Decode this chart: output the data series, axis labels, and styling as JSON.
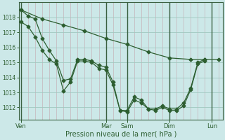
{
  "bg_color": "#cce8e8",
  "grid_minor_color": "#b8d8d4",
  "grid_major_color": "#a0c8c0",
  "vline_day_color": "#3a6040",
  "line_color": "#2d5e30",
  "xlabel": "Pression niveau de la mer( hPa )",
  "tick_color": "#2d5e30",
  "ylim": [
    1011.2,
    1019.0
  ],
  "yticks": [
    1012,
    1013,
    1014,
    1015,
    1016,
    1017,
    1018
  ],
  "xtick_labels": [
    "Ven",
    "Mar",
    "Sam",
    "Dim",
    "Lun"
  ],
  "xtick_positions": [
    0,
    12,
    15,
    21,
    27
  ],
  "xlim_min": -0.3,
  "xlim_max": 28.5,
  "num_minor_vlines": 29,
  "vline_day_positions": [
    0,
    12,
    15,
    21,
    27
  ],
  "line1_x": [
    0,
    1,
    2,
    3,
    4,
    5,
    6,
    7,
    8,
    9,
    10,
    11,
    12,
    13,
    14,
    15,
    16,
    17,
    18,
    19,
    20,
    21,
    22,
    23,
    24,
    25,
    26
  ],
  "line1_y": [
    1018.5,
    1018.1,
    1017.9,
    1016.6,
    1015.8,
    1015.1,
    1013.8,
    1013.9,
    1015.2,
    1015.2,
    1015.1,
    1014.8,
    1014.7,
    1013.7,
    1011.8,
    1011.8,
    1012.7,
    1012.5,
    1011.9,
    1011.9,
    1012.1,
    1011.9,
    1011.9,
    1012.3,
    1013.3,
    1015.0,
    1015.2
  ],
  "line2_x": [
    0,
    1,
    2,
    3,
    4,
    5,
    6,
    7,
    8,
    9,
    10,
    11,
    12,
    13,
    14,
    15,
    16,
    17,
    18,
    19,
    20,
    21,
    22,
    23,
    24,
    25,
    26
  ],
  "line2_y": [
    1017.7,
    1017.4,
    1016.7,
    1015.8,
    1015.2,
    1014.9,
    1013.1,
    1013.7,
    1015.1,
    1015.1,
    1015.0,
    1014.6,
    1014.5,
    1013.5,
    1011.8,
    1011.7,
    1012.5,
    1012.3,
    1011.9,
    1011.8,
    1012.0,
    1011.8,
    1011.8,
    1012.1,
    1013.2,
    1014.9,
    1015.1
  ],
  "line3_x": [
    0,
    3,
    6,
    9,
    12,
    15,
    18,
    21,
    24,
    26,
    28
  ],
  "line3_y": [
    1018.5,
    1017.9,
    1017.5,
    1017.1,
    1016.6,
    1016.2,
    1015.7,
    1015.3,
    1015.2,
    1015.2,
    1015.2
  ]
}
